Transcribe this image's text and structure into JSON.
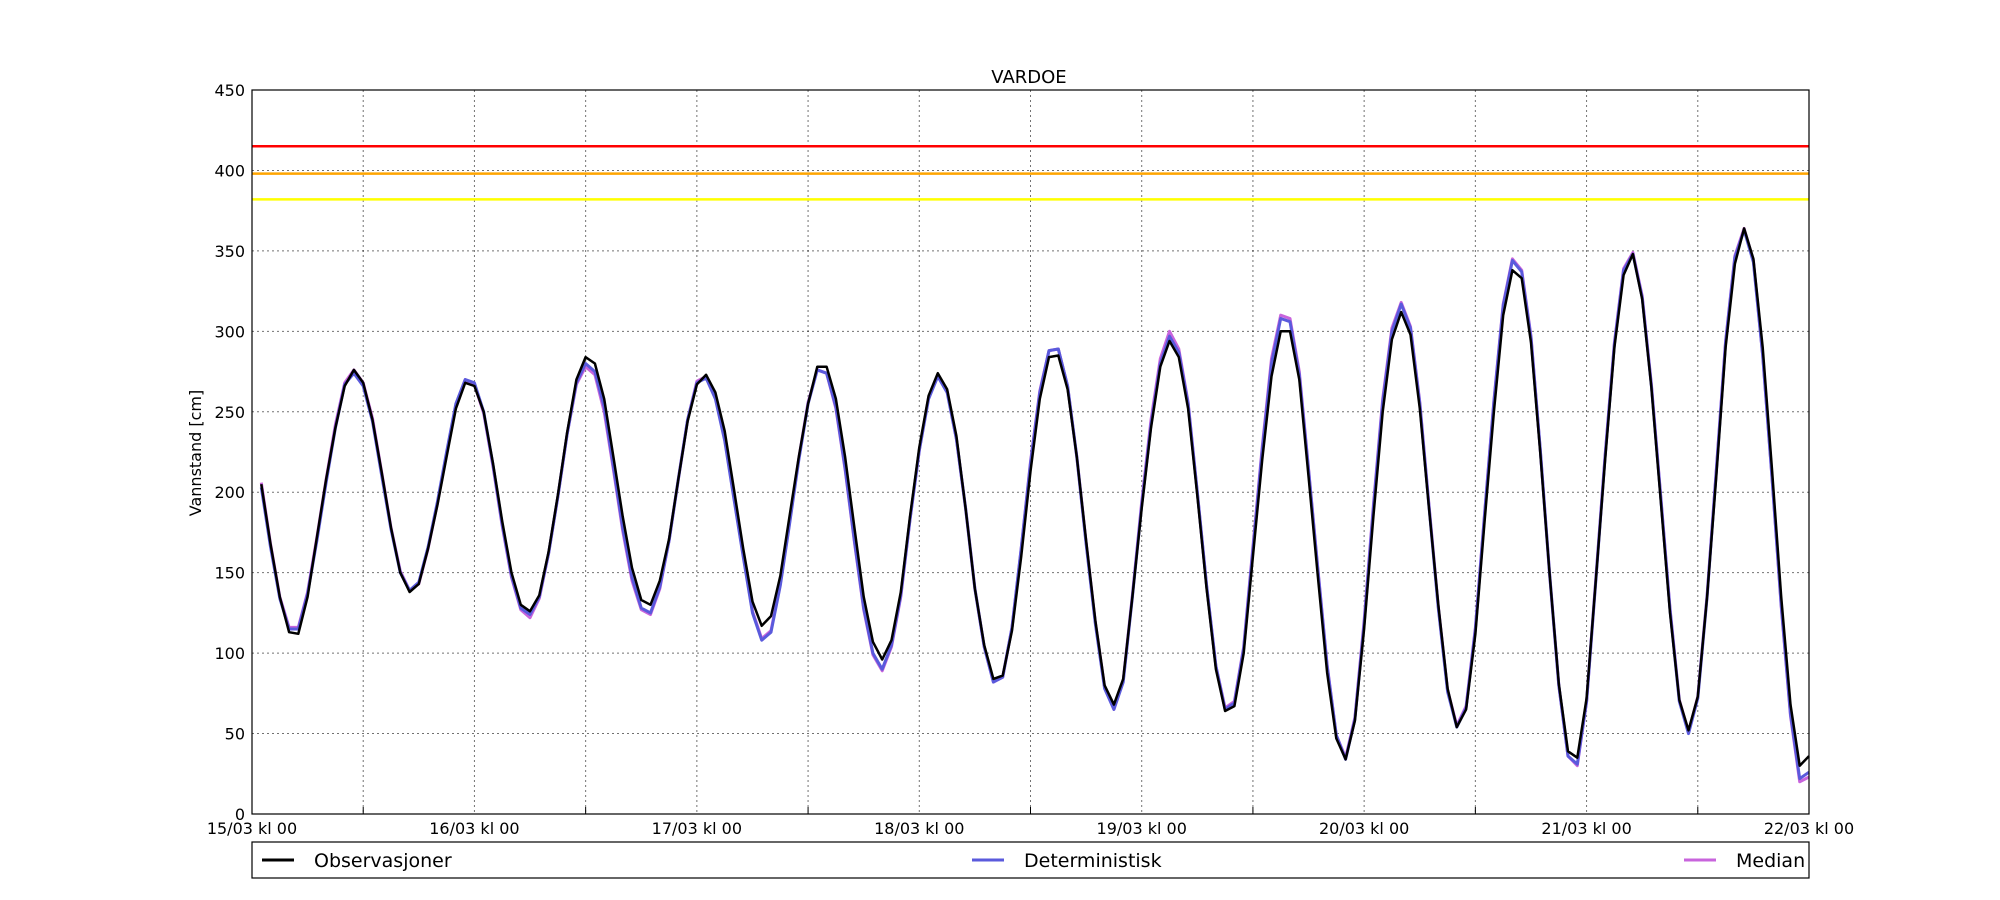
{
  "chart_data": {
    "type": "line",
    "title": "VARDOE",
    "xlabel": "",
    "ylabel": "Vannstand [cm]",
    "ylim": [
      0,
      450
    ],
    "yticks": [
      0,
      50,
      100,
      150,
      200,
      250,
      300,
      350,
      400,
      450
    ],
    "x_unit": "hours since 15/03 kl 00",
    "xlim": [
      0,
      168
    ],
    "xtick_labels": [
      "15/03 kl 00",
      "16/03 kl 00",
      "17/03 kl 00",
      "18/03 kl 00",
      "19/03 kl 00",
      "20/03 kl 00",
      "21/03 kl 00",
      "22/03 kl 00"
    ],
    "xtick_hours": [
      0,
      24,
      48,
      72,
      96,
      120,
      144,
      168
    ],
    "minor_grid_hours": [
      12,
      36,
      60,
      84,
      108,
      132,
      156
    ],
    "grid": true,
    "thresholds": [
      {
        "value": 415,
        "color": "#ff0000"
      },
      {
        "value": 398,
        "color": "#ffa500"
      },
      {
        "value": 382,
        "color": "#ffff00"
      }
    ],
    "series": [
      {
        "name": "Observasjoner",
        "color": "#000000",
        "x_start": 1,
        "x_step": 1,
        "values": [
          205,
          168,
          135,
          113,
          112,
          135,
          172,
          208,
          240,
          266,
          276,
          268,
          245,
          212,
          178,
          150,
          138,
          143,
          165,
          192,
          222,
          252,
          268,
          266,
          250,
          218,
          182,
          150,
          130,
          126,
          136,
          163,
          198,
          237,
          270,
          284,
          280,
          258,
          222,
          185,
          153,
          133,
          130,
          145,
          171,
          208,
          244,
          267,
          273,
          262,
          238,
          202,
          165,
          132,
          117,
          123,
          148,
          185,
          222,
          255,
          278,
          278,
          258,
          222,
          178,
          135,
          107,
          96,
          108,
          138,
          185,
          228,
          260,
          274,
          264,
          235,
          190,
          140,
          105,
          84,
          86,
          114,
          160,
          213,
          258,
          284,
          285,
          264,
          222,
          170,
          120,
          80,
          68,
          84,
          135,
          190,
          240,
          278,
          294,
          284,
          252,
          198,
          140,
          90,
          64,
          67,
          100,
          160,
          220,
          272,
          300,
          300,
          270,
          210,
          148,
          88,
          47,
          34,
          58,
          115,
          185,
          250,
          295,
          312,
          298,
          252,
          190,
          130,
          78,
          54,
          65,
          112,
          182,
          250,
          310,
          338,
          333,
          293,
          225,
          150,
          81,
          39,
          35,
          72,
          145,
          220,
          290,
          335,
          348,
          320,
          265,
          195,
          125,
          71,
          52,
          73,
          135,
          210,
          290,
          342,
          364,
          345,
          290,
          215,
          135,
          68,
          30,
          36
        ]
      },
      {
        "name": "Deterministisk",
        "color": "#5a5adc",
        "x_start": 1,
        "x_step": 1,
        "values": [
          203,
          166,
          134,
          115,
          115,
          137,
          170,
          206,
          240,
          267,
          274,
          266,
          244,
          210,
          177,
          150,
          139,
          144,
          166,
          194,
          225,
          255,
          270,
          268,
          250,
          217,
          180,
          148,
          128,
          124,
          135,
          162,
          197,
          236,
          268,
          280,
          275,
          253,
          216,
          178,
          147,
          128,
          125,
          141,
          170,
          208,
          245,
          268,
          271,
          258,
          232,
          196,
          160,
          125,
          108,
          113,
          142,
          180,
          220,
          255,
          276,
          274,
          253,
          215,
          170,
          128,
          100,
          90,
          105,
          136,
          183,
          226,
          258,
          272,
          262,
          233,
          190,
          140,
          104,
          82,
          85,
          116,
          165,
          218,
          262,
          288,
          289,
          266,
          222,
          168,
          118,
          78,
          65,
          82,
          135,
          192,
          242,
          280,
          297,
          287,
          255,
          200,
          142,
          92,
          65,
          69,
          103,
          164,
          226,
          280,
          308,
          306,
          273,
          214,
          152,
          92,
          49,
          34,
          59,
          118,
          190,
          256,
          300,
          317,
          302,
          255,
          191,
          128,
          76,
          54,
          66,
          115,
          186,
          256,
          316,
          344,
          337,
          296,
          227,
          150,
          80,
          36,
          31,
          70,
          145,
          222,
          292,
          338,
          348,
          321,
          266,
          197,
          127,
          70,
          50,
          72,
          135,
          213,
          293,
          346,
          363,
          343,
          285,
          210,
          130,
          62,
          22,
          26
        ]
      },
      {
        "name": "Median",
        "color": "#c864dc",
        "x_start": 1,
        "x_step": 1,
        "values": [
          206,
          168,
          135,
          116,
          116,
          138,
          172,
          208,
          242,
          268,
          276,
          268,
          246,
          212,
          178,
          151,
          139,
          143,
          165,
          193,
          224,
          254,
          270,
          267,
          249,
          216,
          179,
          147,
          127,
          122,
          134,
          162,
          197,
          236,
          267,
          278,
          273,
          250,
          214,
          176,
          145,
          127,
          124,
          140,
          170,
          208,
          245,
          269,
          272,
          259,
          233,
          197,
          161,
          126,
          109,
          114,
          143,
          181,
          221,
          256,
          276,
          274,
          252,
          214,
          169,
          127,
          99,
          89,
          104,
          135,
          183,
          226,
          259,
          273,
          263,
          233,
          190,
          140,
          104,
          82,
          85,
          116,
          165,
          219,
          263,
          288,
          289,
          266,
          222,
          169,
          119,
          79,
          65,
          83,
          136,
          194,
          245,
          283,
          300,
          289,
          256,
          200,
          142,
          92,
          66,
          70,
          104,
          166,
          228,
          283,
          310,
          308,
          275,
          215,
          153,
          93,
          49,
          35,
          60,
          120,
          192,
          258,
          302,
          318,
          303,
          256,
          192,
          129,
          77,
          55,
          67,
          116,
          187,
          257,
          317,
          345,
          338,
          297,
          227,
          150,
          80,
          36,
          30,
          70,
          146,
          223,
          293,
          339,
          349,
          322,
          267,
          198,
          128,
          71,
          51,
          73,
          136,
          214,
          294,
          347,
          364,
          344,
          285,
          210,
          129,
          61,
          20,
          23
        ]
      }
    ],
    "legend": {
      "placement": "bottom",
      "entries": [
        "Observasjoner",
        "Deterministisk",
        "Median"
      ]
    }
  }
}
